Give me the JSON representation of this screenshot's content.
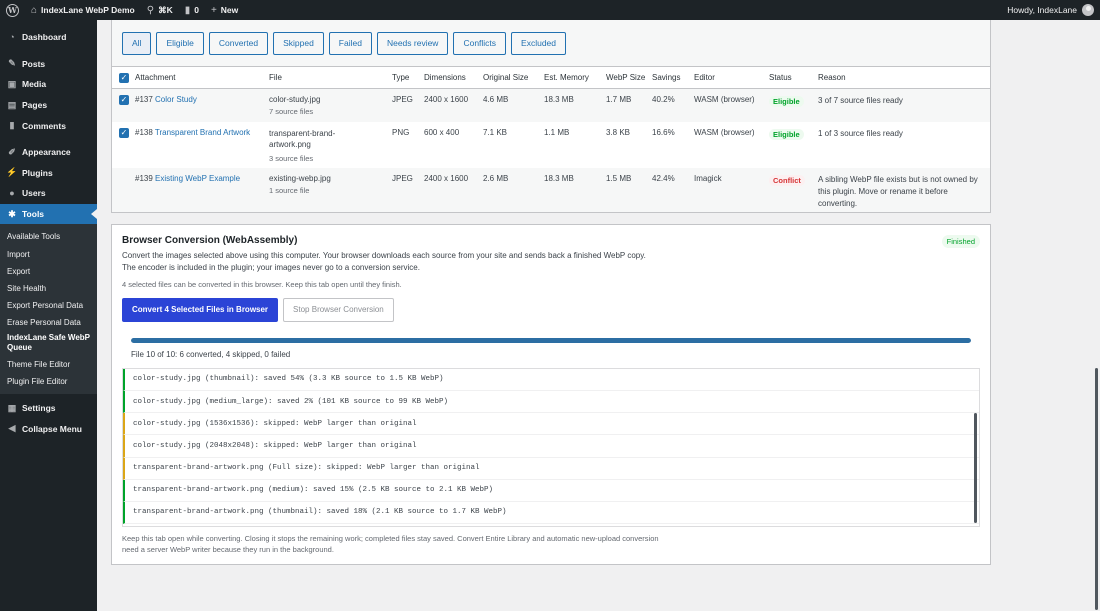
{
  "adminbar": {
    "site": "IndexLane WebP Demo",
    "shortcut": "⌘K",
    "comments": "0",
    "new": "New",
    "greeting": "Howdy, IndexLane"
  },
  "sidebar": {
    "items": [
      {
        "label": "Dashboard",
        "icon": "dashboard-icon"
      },
      {
        "label": "Posts",
        "icon": "pin-icon"
      },
      {
        "label": "Media",
        "icon": "media-icon"
      },
      {
        "label": "Pages",
        "icon": "pages-icon"
      },
      {
        "label": "Comments",
        "icon": "comment-icon"
      },
      {
        "label": "Appearance",
        "icon": "brush-icon"
      },
      {
        "label": "Plugins",
        "icon": "plug-icon"
      },
      {
        "label": "Users",
        "icon": "users-icon"
      },
      {
        "label": "Tools",
        "icon": "wrench-icon"
      }
    ],
    "submenu": [
      "Available Tools",
      "Import",
      "Export",
      "Site Health",
      "Export Personal Data",
      "Erase Personal Data",
      "IndexLane Safe WebP Queue",
      "Theme File Editor",
      "Plugin File Editor"
    ],
    "settings": "Settings",
    "collapse": "Collapse Menu"
  },
  "filters": [
    "All",
    "Eligible",
    "Converted",
    "Skipped",
    "Failed",
    "Needs review",
    "Conflicts",
    "Excluded"
  ],
  "table": {
    "headers": [
      "Attachment",
      "File",
      "Type",
      "Dimensions",
      "Original Size",
      "Est. Memory",
      "WebP Size",
      "Savings",
      "Editor",
      "Status",
      "Reason"
    ],
    "rows": [
      {
        "id": "#137",
        "name": "Color Study",
        "file": "color-study.jpg",
        "sources": "7 source files",
        "type": "JPEG",
        "dims": "2400 x 1600",
        "orig": "4.6 MB",
        "mem": "18.3 MB",
        "webp": "1.7 MB",
        "savings": "40.2%",
        "editor": "WASM (browser)",
        "status": "Eligible",
        "reason": "3 of 7 source files ready"
      },
      {
        "id": "#138",
        "name": "Transparent Brand Artwork",
        "file": "transparent-brand-artwork.png",
        "sources": "3 source files",
        "type": "PNG",
        "dims": "600 x 400",
        "orig": "7.1 KB",
        "mem": "1.1 MB",
        "webp": "3.8 KB",
        "savings": "16.6%",
        "editor": "WASM (browser)",
        "status": "Eligible",
        "reason": "1 of 3 source files ready"
      },
      {
        "id": "#139",
        "name": "Existing WebP Example",
        "file": "existing-webp.jpg",
        "sources": "1 source file",
        "type": "JPEG",
        "dims": "2400 x 1600",
        "orig": "2.6 MB",
        "mem": "18.3 MB",
        "webp": "1.5 MB",
        "savings": "42.4%",
        "editor": "Imagick",
        "status": "Conflict",
        "reason": "A sibling WebP file exists but is not owned by this plugin. Move or rename it before converting."
      }
    ]
  },
  "conversion": {
    "title": "Browser Conversion (WebAssembly)",
    "status": "Finished",
    "desc1": "Convert the images selected above using this computer. Your browser downloads each source from your site and sends back a finished WebP copy.",
    "desc2": "The encoder is included in the plugin; your images never go to a conversion service.",
    "note": "4 selected files can be converted in this browser. Keep this tab open until they finish.",
    "primary_btn": "Convert 4 Selected Files in Browser",
    "stop_btn": "Stop Browser Conversion",
    "progress": 1.0,
    "progress_text": "File 10 of 10: 6 converted, 4 skipped, 0 failed",
    "log": [
      {
        "text": "color-study.jpg (thumbnail): saved 54% (3.3 KB source to 1.5 KB WebP)",
        "kind": "saved"
      },
      {
        "text": "color-study.jpg (medium_large): saved 2% (101 KB source to 99 KB WebP)",
        "kind": "saved"
      },
      {
        "text": "color-study.jpg (1536x1536): skipped: WebP larger than original",
        "kind": "skip"
      },
      {
        "text": "color-study.jpg (2048x2048): skipped: WebP larger than original",
        "kind": "skip"
      },
      {
        "text": "transparent-brand-artwork.png (Full size): skipped: WebP larger than original",
        "kind": "skip"
      },
      {
        "text": "transparent-brand-artwork.png (medium): saved 15% (2.5 KB source to 2.1 KB WebP)",
        "kind": "saved"
      },
      {
        "text": "transparent-brand-artwork.png (thumbnail): saved 18% (2.1 KB source to 1.7 KB WebP)",
        "kind": "saved"
      }
    ],
    "footer": "Keep this tab open while converting. Closing it stops the remaining work; completed files stay saved. Convert Entire Library and automatic new-upload conversion need a server WebP writer because they run in the background."
  }
}
